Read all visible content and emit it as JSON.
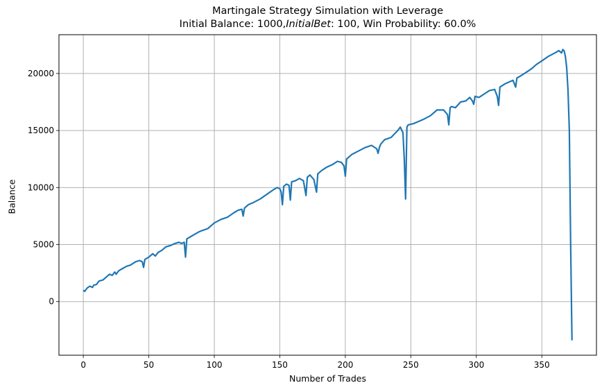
{
  "chart_data": {
    "type": "line",
    "title": "Martingale Strategy Simulation with Leverage",
    "subtitle_parts": [
      "Initial Balance: 1000,",
      "InitialBet",
      ": 100, Win Probability: 60.0%"
    ],
    "xlabel": "Number of Trades",
    "ylabel": "Balance",
    "xlim": [
      -18.6,
      391.7
    ],
    "ylim": [
      -4700,
      23400
    ],
    "xticks": [
      0,
      50,
      100,
      150,
      200,
      250,
      300,
      350
    ],
    "yticks": [
      0,
      5000,
      10000,
      15000,
      20000
    ],
    "grid": true,
    "line_color": "#1f77b4",
    "grid_color": "#b0b0b0",
    "series": [
      {
        "x": [
          0,
          1,
          3,
          5,
          7,
          8,
          10,
          12,
          15,
          18,
          20,
          22,
          24,
          25,
          27,
          30,
          33,
          36,
          40,
          43,
          45,
          46,
          47,
          50,
          53,
          55,
          57,
          60,
          63,
          66,
          70,
          73,
          75,
          77,
          78,
          79,
          82,
          85,
          88,
          90,
          95,
          100,
          105,
          110,
          115,
          118,
          121,
          122,
          123,
          126,
          130,
          135,
          140,
          145,
          148,
          150,
          151,
          152,
          153,
          155,
          157,
          158,
          159,
          162,
          165,
          168,
          170,
          171,
          173,
          176,
          178,
          179,
          182,
          186,
          190,
          194,
          197,
          199,
          200,
          201,
          205,
          210,
          215,
          220,
          224,
          225,
          226,
          227,
          230,
          235,
          240,
          242,
          244,
          245,
          246,
          247,
          248,
          252,
          256,
          260,
          265,
          270,
          275,
          278,
          279,
          280,
          281,
          284,
          288,
          292,
          295,
          297,
          298,
          299,
          302,
          306,
          310,
          314,
          316,
          317,
          318,
          322,
          326,
          328,
          330,
          331,
          334,
          338,
          342,
          346,
          350,
          355,
          360,
          363,
          365,
          366,
          367,
          368,
          369,
          370,
          371,
          372,
          373
        ],
        "y": [
          1000,
          900,
          1200,
          1350,
          1250,
          1450,
          1500,
          1800,
          1900,
          2200,
          2400,
          2300,
          2600,
          2400,
          2700,
          2900,
          3100,
          3200,
          3500,
          3600,
          3500,
          3000,
          3700,
          3900,
          4200,
          4000,
          4300,
          4500,
          4800,
          4900,
          5100,
          5200,
          5100,
          5200,
          3900,
          5500,
          5700,
          5900,
          6100,
          6200,
          6400,
          6900,
          7200,
          7400,
          7800,
          8000,
          8100,
          7500,
          8200,
          8500,
          8700,
          9000,
          9400,
          9800,
          10000,
          9900,
          9600,
          8500,
          10100,
          10300,
          10200,
          8900,
          10500,
          10600,
          10800,
          10600,
          9300,
          10900,
          11100,
          10700,
          9600,
          11200,
          11500,
          11800,
          12000,
          12300,
          12200,
          11900,
          11000,
          12500,
          12900,
          13200,
          13500,
          13700,
          13400,
          13000,
          13500,
          13800,
          14200,
          14400,
          15000,
          15300,
          14800,
          12500,
          9000,
          15300,
          15500,
          15600,
          15800,
          16000,
          16300,
          16800,
          16800,
          16400,
          15500,
          17000,
          17100,
          17000,
          17500,
          17600,
          17900,
          17600,
          17300,
          18000,
          17900,
          18200,
          18500,
          18600,
          18000,
          17200,
          18800,
          19100,
          19300,
          19400,
          18800,
          19600,
          19800,
          20100,
          20400,
          20800,
          21100,
          21500,
          21800,
          22000,
          21800,
          22100,
          22000,
          21500,
          20500,
          18500,
          15000,
          5000,
          -3400
        ]
      }
    ]
  }
}
